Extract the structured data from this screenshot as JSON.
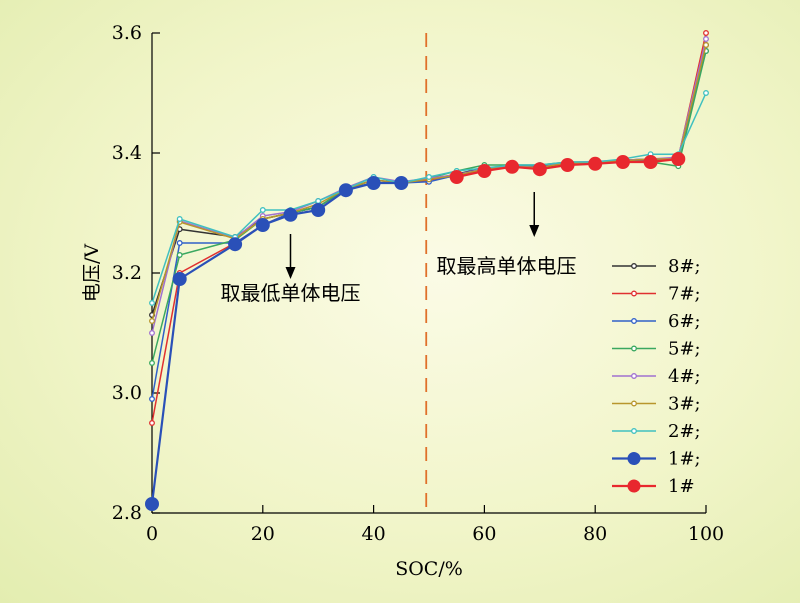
{
  "chart_data": {
    "type": "line",
    "xlabel": "SOC/%",
    "ylabel": "电压/V",
    "xlim": [
      0,
      100
    ],
    "ylim": [
      2.8,
      3.6
    ],
    "x_ticks": [
      0,
      20,
      40,
      60,
      80,
      100
    ],
    "y_ticks": [
      2.8,
      3.0,
      3.2,
      3.4,
      3.6
    ],
    "y_tick_labels": [
      "2.8",
      "3.0",
      "3.2",
      "3.4",
      "3.6"
    ],
    "grid": false,
    "legend_position": "right",
    "divider_x": 49.5,
    "annotations": [
      {
        "text": "取最低单体电压",
        "x": 25,
        "y": 3.155,
        "arrow_from": [
          25,
          3.265
        ],
        "arrow_to": [
          25,
          3.19
        ]
      },
      {
        "text": "取最高单体电压",
        "x": 64,
        "y": 3.2,
        "arrow_from": [
          69,
          3.335
        ],
        "arrow_to": [
          69,
          3.26
        ]
      }
    ],
    "series": [
      {
        "name": "8#;",
        "color": "#333333",
        "marker": "small",
        "x": [
          0,
          5,
          15,
          20,
          25,
          30,
          35,
          40,
          45,
          50,
          55,
          60,
          65,
          70,
          75,
          80,
          85,
          90,
          95,
          100
        ],
        "y": [
          3.13,
          3.273,
          3.26,
          3.29,
          3.3,
          3.31,
          3.34,
          3.355,
          3.35,
          3.355,
          3.365,
          3.375,
          3.378,
          3.375,
          3.383,
          3.385,
          3.388,
          3.39,
          3.39,
          3.58
        ]
      },
      {
        "name": "7#;",
        "color": "#e03030",
        "marker": "small",
        "x": [
          0,
          5,
          15,
          20,
          25,
          30,
          35,
          40,
          45,
          50,
          55,
          60,
          65,
          70,
          75,
          80,
          85,
          90,
          95,
          100
        ],
        "y": [
          2.95,
          3.2,
          3.25,
          3.28,
          3.3,
          3.31,
          3.34,
          3.35,
          3.35,
          3.355,
          3.362,
          3.372,
          3.377,
          3.373,
          3.38,
          3.383,
          3.386,
          3.388,
          3.392,
          3.6
        ]
      },
      {
        "name": "6#;",
        "color": "#3060c8",
        "marker": "small",
        "x": [
          0,
          5,
          15,
          20,
          25,
          30,
          35,
          40,
          45,
          50,
          55,
          60,
          65,
          70,
          75,
          80,
          85,
          90,
          95,
          100
        ],
        "y": [
          2.99,
          3.25,
          3.25,
          3.28,
          3.3,
          3.31,
          3.34,
          3.35,
          3.35,
          3.352,
          3.363,
          3.373,
          3.378,
          3.378,
          3.382,
          3.384,
          3.386,
          3.39,
          3.39,
          3.57
        ]
      },
      {
        "name": "5#;",
        "color": "#3aa860",
        "marker": "small",
        "x": [
          0,
          5,
          15,
          20,
          25,
          30,
          35,
          40,
          45,
          50,
          55,
          60,
          65,
          70,
          75,
          80,
          85,
          90,
          95,
          100
        ],
        "y": [
          3.05,
          3.23,
          3.255,
          3.29,
          3.3,
          3.31,
          3.34,
          3.35,
          3.35,
          3.358,
          3.37,
          3.38,
          3.38,
          3.38,
          3.385,
          3.385,
          3.385,
          3.385,
          3.378,
          3.57
        ]
      },
      {
        "name": "4#;",
        "color": "#a070d0",
        "marker": "small",
        "x": [
          0,
          5,
          15,
          20,
          25,
          30,
          35,
          40,
          45,
          50,
          55,
          60,
          65,
          70,
          75,
          80,
          85,
          90,
          95,
          100
        ],
        "y": [
          3.1,
          3.287,
          3.258,
          3.295,
          3.302,
          3.32,
          3.342,
          3.36,
          3.352,
          3.358,
          3.364,
          3.374,
          3.378,
          3.376,
          3.384,
          3.386,
          3.388,
          3.39,
          3.393,
          3.59
        ]
      },
      {
        "name": "3#;",
        "color": "#b8962c",
        "marker": "small",
        "x": [
          0,
          5,
          15,
          20,
          25,
          30,
          35,
          40,
          45,
          50,
          55,
          60,
          65,
          70,
          75,
          80,
          85,
          90,
          95,
          100
        ],
        "y": [
          3.12,
          3.285,
          3.257,
          3.29,
          3.3,
          3.315,
          3.34,
          3.355,
          3.35,
          3.356,
          3.363,
          3.373,
          3.377,
          3.376,
          3.383,
          3.385,
          3.387,
          3.39,
          3.39,
          3.58
        ]
      },
      {
        "name": "2#;",
        "color": "#40c0c0",
        "marker": "small",
        "x": [
          0,
          5,
          15,
          20,
          25,
          30,
          35,
          40,
          45,
          50,
          55,
          60,
          65,
          70,
          75,
          80,
          85,
          90,
          95,
          100
        ],
        "y": [
          3.15,
          3.29,
          3.26,
          3.305,
          3.305,
          3.32,
          3.34,
          3.36,
          3.35,
          3.36,
          3.37,
          3.375,
          3.38,
          3.38,
          3.385,
          3.385,
          3.39,
          3.398,
          3.398,
          3.5
        ]
      },
      {
        "name": "1#;",
        "color": "#2a50b8",
        "marker": "large",
        "x": [
          0,
          5,
          15,
          20,
          25,
          30,
          35,
          40,
          45
        ],
        "y": [
          2.815,
          3.19,
          3.248,
          3.28,
          3.297,
          3.305,
          3.338,
          3.35,
          3.35
        ]
      },
      {
        "name": "1#",
        "color": "#e8282e",
        "marker": "large",
        "x": [
          55,
          60,
          65,
          70,
          75,
          80,
          85,
          90,
          95
        ],
        "y": [
          3.36,
          3.37,
          3.377,
          3.373,
          3.38,
          3.382,
          3.385,
          3.385,
          3.39
        ]
      }
    ]
  }
}
